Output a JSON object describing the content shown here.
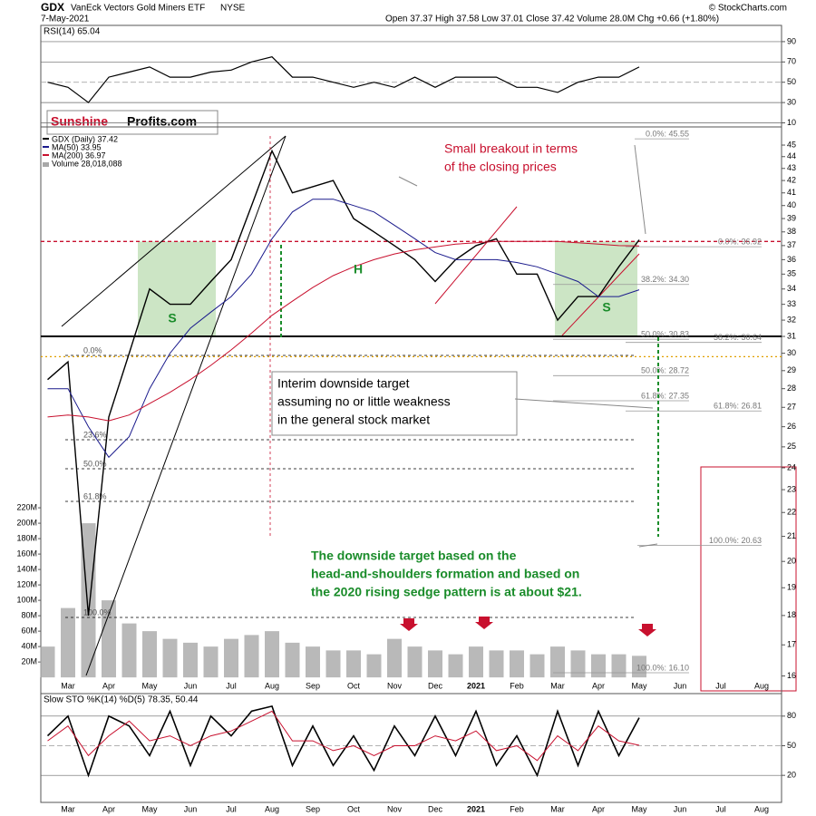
{
  "header": {
    "symbol": "GDX",
    "name": "VanEck Vectors Gold Miners ETF",
    "exchange": "NYSE",
    "date": "7-May-2021",
    "quote": "Open 37.37  High 37.58  Low 37.01  Close 37.42  Volume 28.0M  Chg +0.66 (+1.80%)",
    "source": "© StockCharts.com"
  },
  "logo": {
    "first": "Sunshine",
    "second": "Profits.com"
  },
  "chart_data": [
    {
      "type": "line",
      "title": "RSI(14) 65.04",
      "color": "#000000",
      "values": [
        50,
        45,
        30,
        55,
        60,
        65,
        55,
        55,
        60,
        62,
        70,
        75,
        55,
        55,
        50,
        45,
        50,
        45,
        55,
        45,
        55,
        55,
        55,
        45,
        45,
        40,
        50,
        55,
        55,
        65.04,
        null,
        null,
        null,
        null,
        null,
        null
      ],
      "ylim": [
        6,
        106
      ],
      "yticks": [
        10,
        30,
        50,
        70,
        90
      ]
    },
    {
      "type": "line",
      "log_scale": true,
      "categories": [
        null,
        "Mar",
        null,
        "Apr",
        null,
        "May",
        null,
        "Jun",
        null,
        "Jul",
        null,
        "Aug",
        null,
        "Sep",
        null,
        "Oct",
        null,
        "Nov",
        null,
        "Dec",
        null,
        "2021",
        null,
        "Feb",
        null,
        "Mar",
        null,
        "Apr",
        null,
        "May",
        null,
        "Jun",
        null,
        "Jul",
        null,
        "Aug"
      ],
      "series": [
        {
          "name": "GDX (Daily) 37.42",
          "color": "#000000",
          "values": [
            28.5,
            29.5,
            18,
            26.5,
            30,
            34,
            33,
            33,
            34.5,
            36,
            40,
            44.5,
            41,
            41.5,
            42,
            39,
            38,
            37,
            36,
            34.5,
            36,
            37,
            37.5,
            35,
            35,
            32,
            33.5,
            33.5,
            35.5,
            37.42,
            null,
            null,
            null,
            null,
            null,
            null
          ]
        },
        {
          "name": "MA(50) 33.95",
          "color": "#1a1a8c",
          "values": [
            28,
            28,
            26,
            24.5,
            25.5,
            28,
            30,
            31.5,
            32.5,
            33.5,
            35,
            37.5,
            39.5,
            40.5,
            40.5,
            40,
            39.5,
            38.5,
            37.5,
            36.5,
            36,
            36,
            36,
            35.8,
            35.5,
            35,
            34.5,
            33.5,
            33.5,
            33.95,
            null,
            null,
            null,
            null,
            null,
            null
          ]
        },
        {
          "name": "MA(200) 36.97",
          "color": "#c8102e",
          "values": [
            26.5,
            26.6,
            26.5,
            26.3,
            26.6,
            27.2,
            27.8,
            28.5,
            29.3,
            30.2,
            31.2,
            32.3,
            33.2,
            34.1,
            34.9,
            35.5,
            36,
            36.4,
            36.7,
            36.9,
            37.1,
            37.2,
            37.3,
            37.3,
            37.3,
            37.3,
            37.2,
            37.1,
            37,
            36.97,
            null,
            null,
            null,
            null,
            null,
            null
          ]
        }
      ],
      "ylim": [
        15.46,
        46.62
      ],
      "yticks": [
        16,
        17,
        18,
        19,
        20,
        21,
        22,
        23,
        24,
        25,
        26,
        27,
        28,
        29,
        30,
        31,
        32,
        33,
        34,
        35,
        36,
        37,
        38,
        39,
        40,
        41,
        42,
        43,
        44,
        45
      ],
      "volume": {
        "name": "Volume 28,018,088",
        "color": "#a8a8a8",
        "values": [
          40000000,
          90000000,
          200000000,
          100000000,
          70000000,
          60000000,
          50000000,
          45000000,
          40000000,
          50000000,
          55000000,
          60000000,
          45000000,
          40000000,
          35000000,
          35000000,
          30000000,
          50000000,
          40000000,
          35000000,
          30000000,
          40000000,
          35000000,
          35000000,
          30000000,
          40000000,
          35000000,
          30000000,
          30000000,
          28000000,
          null,
          null,
          null,
          null,
          null,
          null
        ],
        "ylim": [
          -21000000,
          714000000
        ],
        "yticks": [
          {
            "value": 20000000,
            "label": "20M"
          },
          {
            "value": 40000000,
            "label": "40M"
          },
          {
            "value": 60000000,
            "label": "60M"
          },
          {
            "value": 80000000,
            "label": "80M"
          },
          {
            "value": 100000000,
            "label": "100M"
          },
          {
            "value": 120000000,
            "label": "120M"
          },
          {
            "value": 140000000,
            "label": "140M"
          },
          {
            "value": 160000000,
            "label": "160M"
          },
          {
            "value": 180000000,
            "label": "180M"
          },
          {
            "value": 200000000,
            "label": "200M"
          },
          {
            "value": 220000000,
            "label": "220M"
          }
        ]
      },
      "levels": [
        {
          "value": 37.3,
          "color": "#c8102e",
          "style": "dashed"
        },
        {
          "value": 31,
          "color": "#000000",
          "style": "solid"
        },
        {
          "value": 29.8,
          "color": "#e0a000",
          "style": "dotted"
        }
      ],
      "fib_levels": [
        {
          "label": "0.0%: 45.55",
          "value": 45.55
        },
        {
          "label": "0.0%: 36.92",
          "value": 36.92
        },
        {
          "label": "38.2%: 34.30",
          "value": 34.3
        },
        {
          "label": "50.0%: 30.83",
          "value": 30.83
        },
        {
          "label": "38.2%: 30.64",
          "value": 30.64
        },
        {
          "label": "50.0%: 28.72",
          "value": 28.72
        },
        {
          "label": "61.8%: 27.35",
          "value": 27.35
        },
        {
          "label": "61.8%: 26.81",
          "value": 26.81
        },
        {
          "label": "100.0%: 20.63",
          "value": 20.63
        },
        {
          "label": "100.0%: 16.10",
          "value": 16.1
        }
      ],
      "left_fib_labels": [
        "0.0%",
        "23.6%",
        "50.0%",
        "61.8%",
        "100.0%"
      ],
      "pattern_labels": [
        "S",
        "H",
        "S"
      ],
      "notes": [
        {
          "color": "#c8102e",
          "lines": [
            "Small breakout in terms",
            "of the closing prices"
          ]
        },
        {
          "color": "#000000",
          "lines": [
            "Interim downside target",
            "assuming no or little weakness",
            "in the general stock market"
          ]
        },
        {
          "color": "#1a8c2a",
          "lines": [
            "The downside target based on the",
            "head-and-shoulders formation and based on",
            "the 2020 rising sedge pattern is at about $21."
          ]
        }
      ]
    },
    {
      "type": "line",
      "title": "Slow STO %K(14) %D(5) 78.35, 50.44",
      "categories": [
        null,
        "Mar",
        null,
        "Apr",
        null,
        "May",
        null,
        "Jun",
        null,
        "Jul",
        null,
        "Aug",
        null,
        "Sep",
        null,
        "Oct",
        null,
        "Nov",
        null,
        "Dec",
        null,
        "2021",
        null,
        "Feb",
        null,
        "Mar",
        null,
        "Apr",
        null,
        "May",
        null,
        "Jun",
        null,
        "Jul",
        null,
        "Aug"
      ],
      "series": [
        {
          "color": "#000000",
          "values": [
            60,
            80,
            20,
            80,
            70,
            40,
            85,
            30,
            80,
            60,
            85,
            90,
            30,
            70,
            30,
            60,
            25,
            70,
            40,
            80,
            40,
            85,
            30,
            60,
            20,
            85,
            30,
            85,
            40,
            78.35,
            null,
            null,
            null,
            null,
            null,
            null
          ]
        },
        {
          "color": "#c8102e",
          "values": [
            55,
            70,
            40,
            60,
            75,
            55,
            60,
            50,
            60,
            65,
            75,
            85,
            55,
            55,
            45,
            50,
            40,
            50,
            50,
            60,
            55,
            65,
            45,
            50,
            35,
            60,
            45,
            70,
            55,
            50.44,
            null,
            null,
            null,
            null,
            null,
            null
          ]
        }
      ],
      "ylim": [
        -7.4,
        102.8
      ],
      "yticks": [
        20,
        50,
        80
      ]
    }
  ]
}
